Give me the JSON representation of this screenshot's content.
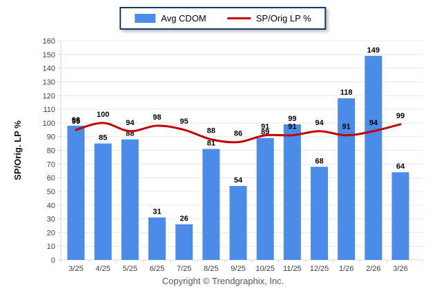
{
  "legend": {
    "items": [
      {
        "label": "Avg CDOM",
        "type": "bar",
        "color": "#4a8ce8"
      },
      {
        "label": "SP/Orig LP %",
        "type": "line",
        "color": "#c00000"
      }
    ]
  },
  "footer": {
    "copyright": "Copyright © Trendgraphix, Inc."
  },
  "chart_data": {
    "type": "bar",
    "title": "",
    "categories": [
      "3/25",
      "4/25",
      "5/25",
      "6/25",
      "7/25",
      "8/25",
      "9/25",
      "10/25",
      "11/25",
      "12/25",
      "1/26",
      "2/26",
      "3/26"
    ],
    "series": [
      {
        "name": "Avg CDOM",
        "type": "bar",
        "color": "#4a8ce8",
        "values": [
          98,
          85,
          88,
          31,
          26,
          81,
          54,
          89,
          99,
          68,
          118,
          149,
          64
        ]
      },
      {
        "name": "SP/Orig LP %",
        "type": "line",
        "color": "#c00000",
        "values": [
          95,
          100,
          94,
          98,
          95,
          88,
          86,
          91,
          91,
          94,
          91,
          94,
          99
        ]
      }
    ],
    "xlabel": "",
    "ylabel": "SP/Orig. LP %",
    "ylim": [
      0,
      160
    ],
    "ytick_step": 10,
    "grid": "horizontal",
    "legend_position": "top",
    "data_labels": true,
    "colors": {
      "grid": "#e8e8e8",
      "axis": "#d4d4d4",
      "tick_text": "#3f3f3f",
      "label_text": "#000000",
      "legend_border": "#17375e"
    }
  }
}
